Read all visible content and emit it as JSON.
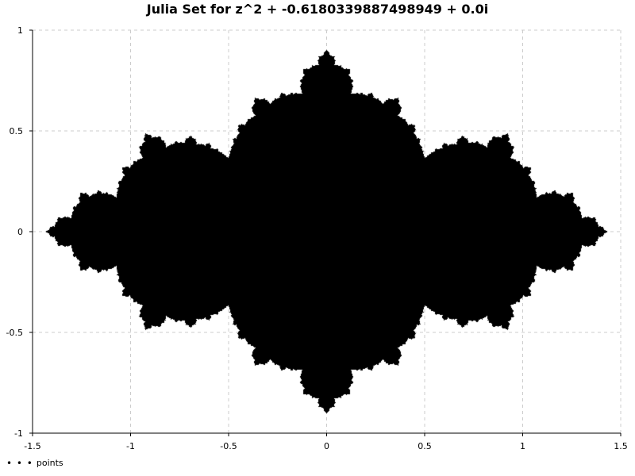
{
  "chart_data": {
    "type": "scatter",
    "title": "Julia Set for z^2 + -0.6180339887498949 + 0.0i",
    "c": {
      "re": -0.6180339887498949,
      "im": 0.0
    },
    "xlabel": "",
    "ylabel": "",
    "xlim": [
      -1.5,
      1.5
    ],
    "ylim": [
      -1,
      1
    ],
    "xticks": [
      -1.5,
      -1,
      -0.5,
      0,
      0.5,
      1,
      1.5
    ],
    "xtick_labels": [
      "-1.5",
      "-1",
      "-0.5",
      "0",
      "0.5",
      "1",
      "1.5"
    ],
    "yticks": [
      1,
      0.5,
      0,
      -0.5,
      -1
    ],
    "ytick_labels": [
      "1",
      "0.5",
      "0",
      "-0.5",
      "-1"
    ],
    "grid": true,
    "legend_position": "bottom-left",
    "series": [
      {
        "name": "points",
        "color": "#000000",
        "marker": "dot"
      }
    ]
  }
}
